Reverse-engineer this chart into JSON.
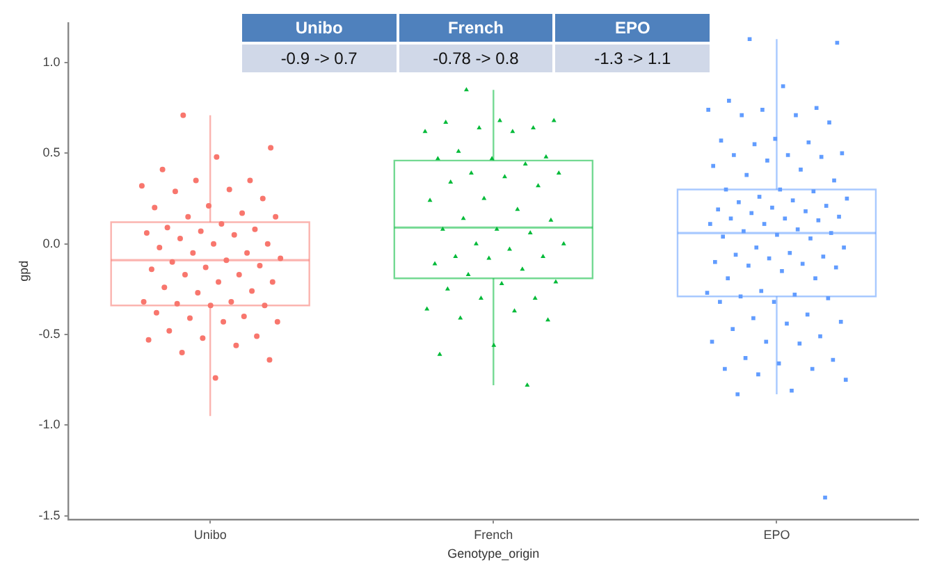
{
  "chart_data": {
    "type": "box",
    "xlabel": "Genotype_origin",
    "ylabel": "gpd",
    "categories": [
      "Unibo",
      "French",
      "EPO"
    ],
    "colors": [
      "#f8766d",
      "#00ba38",
      "#619cff"
    ],
    "boxes": [
      {
        "low": -0.95,
        "q1": -0.34,
        "median": -0.09,
        "q3": 0.12,
        "high": 0.71
      },
      {
        "low": -0.78,
        "q1": -0.19,
        "median": 0.09,
        "q3": 0.46,
        "high": 0.85
      },
      {
        "low": -0.83,
        "q1": -0.29,
        "median": 0.06,
        "q3": 0.3,
        "high": 1.13
      }
    ],
    "series": [
      {
        "type": "scatter",
        "color": "#f8766d",
        "marker": "circle",
        "x": [
          "Unibo",
          "Unibo",
          "Unibo",
          "Unibo",
          "Unibo",
          "Unibo",
          "Unibo",
          "Unibo",
          "Unibo",
          "Unibo",
          "Unibo",
          "Unibo",
          "Unibo",
          "Unibo",
          "Unibo",
          "Unibo",
          "Unibo",
          "Unibo",
          "Unibo",
          "Unibo",
          "Unibo",
          "Unibo",
          "Unibo",
          "Unibo",
          "Unibo",
          "Unibo",
          "Unibo",
          "Unibo",
          "Unibo",
          "Unibo",
          "Unibo",
          "Unibo",
          "Unibo",
          "Unibo",
          "Unibo",
          "Unibo",
          "Unibo",
          "Unibo",
          "Unibo",
          "Unibo",
          "Unibo",
          "Unibo",
          "Unibo",
          "Unibo",
          "Unibo",
          "Unibo",
          "Unibo",
          "Unibo",
          "Unibo",
          "Unibo",
          "Unibo",
          "Unibo",
          "Unibo",
          "Unibo",
          "Unibo",
          "Unibo",
          "Unibo",
          "Unibo"
        ],
        "values": [
          0.71,
          0.53,
          0.48,
          0.41,
          0.35,
          0.35,
          0.32,
          0.3,
          0.29,
          0.25,
          0.21,
          0.2,
          0.17,
          0.15,
          0.15,
          0.11,
          0.09,
          0.08,
          0.07,
          0.06,
          0.05,
          0.03,
          0.0,
          0.0,
          -0.02,
          -0.05,
          -0.05,
          -0.08,
          -0.09,
          -0.1,
          -0.12,
          -0.13,
          -0.14,
          -0.17,
          -0.17,
          -0.21,
          -0.21,
          -0.24,
          -0.26,
          -0.27,
          -0.32,
          -0.32,
          -0.33,
          -0.34,
          -0.34,
          -0.38,
          -0.4,
          -0.41,
          -0.43,
          -0.43,
          -0.48,
          -0.51,
          -0.52,
          -0.53,
          -0.56,
          -0.6,
          -0.64,
          -0.74
        ]
      },
      {
        "type": "scatter",
        "color": "#00ba38",
        "marker": "triangle",
        "x": [
          "French",
          "French",
          "French",
          "French",
          "French",
          "French",
          "French",
          "French",
          "French",
          "French",
          "French",
          "French",
          "French",
          "French",
          "French",
          "French",
          "French",
          "French",
          "French",
          "French",
          "French",
          "French",
          "French",
          "French",
          "French",
          "French",
          "French",
          "French",
          "French",
          "French",
          "French",
          "French",
          "French",
          "French",
          "French",
          "French",
          "French",
          "French",
          "French",
          "French",
          "French",
          "French",
          "French",
          "French",
          "French",
          "French",
          "French"
        ],
        "values": [
          0.85,
          0.68,
          0.68,
          0.67,
          0.64,
          0.64,
          0.62,
          0.62,
          0.51,
          0.48,
          0.47,
          0.47,
          0.44,
          0.39,
          0.39,
          0.37,
          0.34,
          0.32,
          0.25,
          0.24,
          0.19,
          0.14,
          0.13,
          0.08,
          0.08,
          0.06,
          0.0,
          0.0,
          -0.03,
          -0.07,
          -0.07,
          -0.08,
          -0.11,
          -0.14,
          -0.17,
          -0.21,
          -0.22,
          -0.25,
          -0.3,
          -0.3,
          -0.36,
          -0.37,
          -0.41,
          -0.42,
          -0.56,
          -0.61,
          -0.78
        ]
      },
      {
        "type": "scatter",
        "color": "#619cff",
        "marker": "square",
        "x": [
          "EPO",
          "EPO",
          "EPO",
          "EPO",
          "EPO",
          "EPO",
          "EPO",
          "EPO",
          "EPO",
          "EPO",
          "EPO",
          "EPO",
          "EPO",
          "EPO",
          "EPO",
          "EPO",
          "EPO",
          "EPO",
          "EPO",
          "EPO",
          "EPO",
          "EPO",
          "EPO",
          "EPO",
          "EPO",
          "EPO",
          "EPO",
          "EPO",
          "EPO",
          "EPO",
          "EPO",
          "EPO",
          "EPO",
          "EPO",
          "EPO",
          "EPO",
          "EPO",
          "EPO",
          "EPO",
          "EPO",
          "EPO",
          "EPO",
          "EPO",
          "EPO",
          "EPO",
          "EPO",
          "EPO",
          "EPO",
          "EPO",
          "EPO",
          "EPO",
          "EPO",
          "EPO",
          "EPO",
          "EPO",
          "EPO",
          "EPO",
          "EPO",
          "EPO",
          "EPO",
          "EPO",
          "EPO",
          "EPO",
          "EPO",
          "EPO",
          "EPO",
          "EPO",
          "EPO",
          "EPO",
          "EPO",
          "EPO",
          "EPO",
          "EPO",
          "EPO",
          "EPO",
          "EPO",
          "EPO",
          "EPO",
          "EPO",
          "EPO",
          "EPO",
          "EPO",
          "EPO",
          "EPO",
          "EPO",
          "EPO"
        ],
        "values": [
          1.13,
          1.11,
          0.87,
          0.79,
          0.75,
          0.74,
          0.74,
          0.71,
          0.71,
          0.67,
          0.58,
          0.57,
          0.56,
          0.55,
          0.5,
          0.49,
          0.49,
          0.48,
          0.46,
          0.43,
          0.41,
          0.38,
          0.35,
          0.3,
          0.3,
          0.29,
          0.26,
          0.25,
          0.24,
          0.23,
          0.21,
          0.2,
          0.19,
          0.18,
          0.17,
          0.15,
          0.14,
          0.14,
          0.13,
          0.11,
          0.11,
          0.08,
          0.07,
          0.06,
          0.05,
          0.04,
          0.03,
          -0.02,
          -0.02,
          -0.05,
          -0.06,
          -0.07,
          -0.08,
          -0.1,
          -0.11,
          -0.12,
          -0.13,
          -0.15,
          -0.19,
          -0.19,
          -0.26,
          -0.27,
          -0.28,
          -0.29,
          -0.3,
          -0.32,
          -0.32,
          -0.39,
          -0.41,
          -0.43,
          -0.44,
          -0.47,
          -0.51,
          -0.54,
          -0.54,
          -0.55,
          -0.63,
          -0.64,
          -0.66,
          -0.69,
          -0.69,
          -0.72,
          -0.75,
          -0.81,
          -0.83,
          -1.4
        ]
      }
    ],
    "ylim": [
      -1.52,
      1.22
    ],
    "yticks": [
      {
        "value": -1.5,
        "label": "-1.5"
      },
      {
        "value": -1,
        "label": "-1.0"
      },
      {
        "value": -0.5,
        "label": "-0.5"
      },
      {
        "value": 0,
        "label": "0.0"
      },
      {
        "value": 0.5,
        "label": "0.5"
      },
      {
        "value": 1,
        "label": "1.0"
      }
    ],
    "grid": false,
    "legend": false,
    "annotations": [
      "Unibo",
      "French",
      "EPO",
      "-0.9 -> 0.7",
      "-0.78 -> 0.8",
      "-1.3 -> 1.1"
    ]
  }
}
